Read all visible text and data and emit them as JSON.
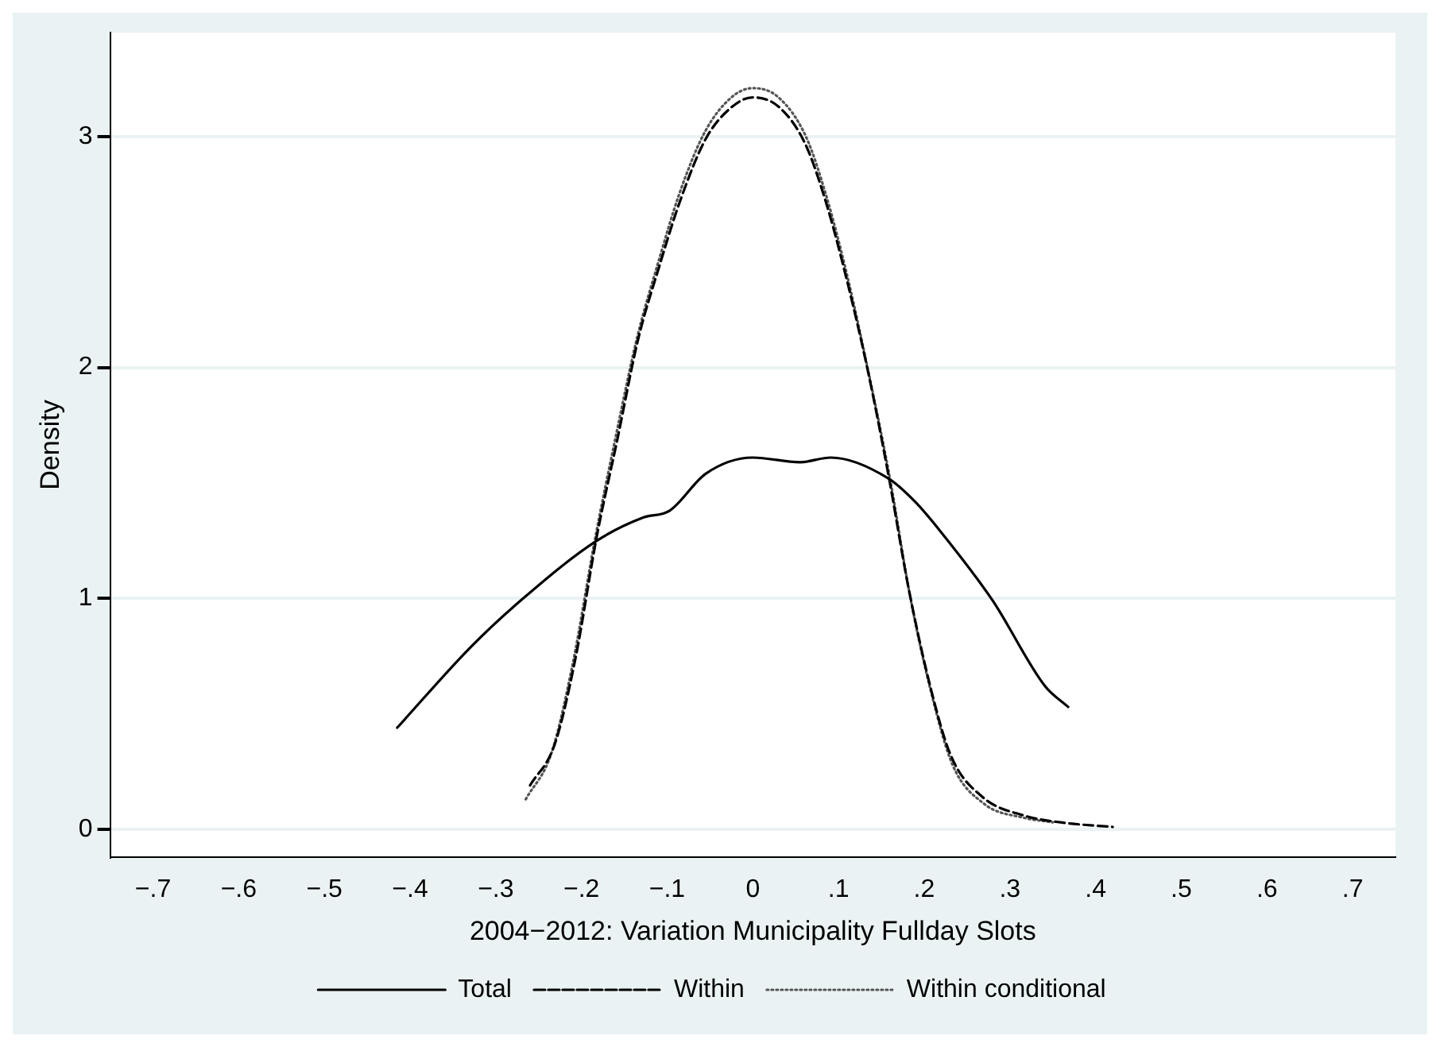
{
  "chart_data": {
    "type": "line",
    "xlabel": "2004−2012: Variation Municipality Fullday Slots",
    "ylabel": "Density",
    "xlim": [
      -0.75,
      0.75
    ],
    "ylim": [
      -0.12,
      3.45
    ],
    "xticks": [
      {
        "value": -0.7,
        "label": "−.7"
      },
      {
        "value": -0.6,
        "label": "−.6"
      },
      {
        "value": -0.5,
        "label": "−.5"
      },
      {
        "value": -0.4,
        "label": "−.4"
      },
      {
        "value": -0.3,
        "label": "−.3"
      },
      {
        "value": -0.2,
        "label": "−.2"
      },
      {
        "value": -0.1,
        "label": "−.1"
      },
      0,
      {
        "value": 0.1,
        "label": ".1"
      },
      {
        "value": 0.2,
        "label": ".2"
      },
      {
        "value": 0.3,
        "label": ".3"
      },
      {
        "value": 0.4,
        "label": ".4"
      },
      {
        "value": 0.5,
        "label": ".5"
      },
      {
        "value": 0.6,
        "label": ".6"
      },
      {
        "value": 0.7,
        "label": ".7"
      }
    ],
    "yticks": [
      0,
      1,
      2,
      3
    ],
    "grid": "y",
    "legend": "bottom",
    "marker": "none",
    "series": [
      {
        "name": "Total",
        "color": "#000000",
        "line_style": "solid",
        "x": [
          -0.415,
          -0.329,
          -0.268,
          -0.182,
          -0.128,
          -0.097,
          -0.055,
          0,
          0.055,
          0.091,
          0.158,
          0.189,
          0.219,
          0.28,
          0.341,
          0.368
        ],
        "values": [
          0.44,
          0.79,
          1.0,
          1.25,
          1.35,
          1.38,
          1.54,
          1.61,
          1.59,
          1.61,
          1.52,
          1.42,
          1.29,
          0.99,
          0.62,
          0.53
        ]
      },
      {
        "name": "Within",
        "color": "#000000",
        "line_style": "dashed",
        "x": [
          -0.26,
          -0.231,
          -0.207,
          -0.182,
          -0.158,
          -0.134,
          -0.109,
          -0.085,
          -0.055,
          -0.024,
          0,
          0.03,
          0.061,
          0.085,
          0.109,
          0.134,
          0.158,
          0.182,
          0.207,
          0.231,
          0.268,
          0.316,
          0.359,
          0.42
        ],
        "values": [
          0.19,
          0.37,
          0.74,
          1.27,
          1.69,
          2.12,
          2.44,
          2.72,
          2.99,
          3.13,
          3.17,
          3.13,
          2.97,
          2.72,
          2.39,
          1.99,
          1.54,
          1.04,
          0.62,
          0.32,
          0.14,
          0.06,
          0.03,
          0.01
        ]
      },
      {
        "name": "Within conditional",
        "color": "#555555",
        "line_style": "dotted",
        "x": [
          -0.265,
          -0.235,
          -0.21,
          -0.184,
          -0.16,
          -0.135,
          -0.11,
          -0.086,
          -0.056,
          -0.025,
          0,
          0.03,
          0.062,
          0.086,
          0.11,
          0.135,
          0.16,
          0.184,
          0.209,
          0.233,
          0.27,
          0.316,
          0.35
        ],
        "values": [
          0.13,
          0.33,
          0.72,
          1.26,
          1.7,
          2.13,
          2.46,
          2.75,
          3.02,
          3.17,
          3.21,
          3.17,
          3.0,
          2.74,
          2.4,
          1.98,
          1.52,
          1.0,
          0.58,
          0.28,
          0.11,
          0.05,
          0.03
        ]
      }
    ]
  }
}
